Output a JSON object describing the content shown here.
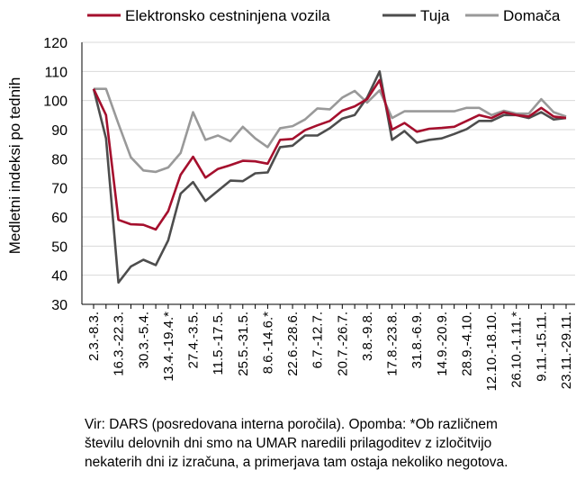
{
  "chart_data": {
    "type": "line",
    "ylabel": "Medletni indeksi po tednih",
    "xlabel": "",
    "ylim": [
      30,
      120
    ],
    "yticks": [
      30,
      40,
      50,
      60,
      70,
      80,
      90,
      100,
      110,
      120
    ],
    "grid": "horizontal",
    "legend_position": "top",
    "x": [
      "2.3.-8.3.",
      "9.3.-15.3.",
      "16.3.-22.3.",
      "23.3.-29.3.",
      "30.3.-5.4.",
      "6.4.-12.4.",
      "13.4.-19.4.*",
      "20.4.-26.4.",
      "27.4.-3.5.",
      "4.5.-10.5.",
      "11.5.-17.5.",
      "18.5.-24.5.",
      "25.5.-31.5.",
      "1.6.-7.6.",
      "8.6.-14.6.*",
      "15.6.-21.6.",
      "22.6.-28.6.",
      "29.6.-5.7.",
      "6.7.-12.7.",
      "13.7.-19.7.",
      "20.7.-26.7.",
      "27.7.-2.8.",
      "3.8.-9.8.",
      "10.8.-16.8.",
      "17.8.-23.8.",
      "24.8.-30.8.",
      "31.8.-6.9.",
      "7.9.-13.9.",
      "14.9.-20.9.",
      "21.9.-27.9.",
      "28.9.-4.10.",
      "5.10.-11.10.",
      "12.10.-18.10.",
      "19.10.-25.10.",
      "26.10.-1.11.*",
      "2.11.-8.11.",
      "9.11.-15.11.",
      "16.11.-22.11.",
      "23.11.-29.11."
    ],
    "tick_labels": [
      "2.3.-8.3.",
      "16.3.-22.3.",
      "30.3.-5.4.",
      "13.4.-19.4.*",
      "27.4.-3.5.",
      "11.5.-17.5.",
      "25.5.-31.5.",
      "8.6.-14.6.*",
      "22.6.-28.6.",
      "6.7.-12.7.",
      "20.7.-26.7.",
      "3.8.-9.8.",
      "17.8.-23.8.",
      "31.8.-6.9.",
      "14.9.-20.9.",
      "28.9.-4.10.",
      "12.10.-18.10.",
      "26.10.-1.11.*",
      "9.11.-15.11.",
      "23.11.-29.11."
    ],
    "series": [
      {
        "name": "Elektronsko cestninjena vozila",
        "color": "#a50f2d",
        "values": [
          104,
          95,
          59,
          57.5,
          57.3,
          55.7,
          62,
          74.5,
          80.7,
          73.5,
          76.5,
          77.8,
          79.3,
          79.1,
          78.3,
          86.5,
          86.8,
          89.8,
          91.5,
          93,
          96.5,
          98,
          100.5,
          107,
          90,
          92.3,
          89.3,
          90.3,
          90.6,
          91,
          93,
          95,
          94,
          96,
          95,
          94.5,
          97.5,
          94.5,
          94
        ]
      },
      {
        "name": "Tuja",
        "color": "#4d4d4d",
        "values": [
          104,
          87,
          37.5,
          43,
          45.3,
          43.5,
          52,
          68,
          72,
          65.5,
          69,
          72.5,
          72.3,
          75,
          75.3,
          84,
          84.5,
          88,
          88,
          90.5,
          93.8,
          95,
          101,
          110,
          86.5,
          89.5,
          85.5,
          86.5,
          87,
          88.5,
          90.2,
          93,
          93,
          95,
          95,
          94,
          96,
          93.5,
          94
        ]
      },
      {
        "name": "Domača",
        "color": "#999999",
        "values": [
          104,
          104,
          92,
          80.5,
          76,
          75.5,
          77,
          82,
          96,
          86.5,
          88,
          86,
          91,
          87,
          84,
          90.5,
          91.2,
          93.5,
          97.3,
          97,
          101,
          103.3,
          99.3,
          103.5,
          94,
          96.3,
          96.3,
          96.3,
          96.3,
          96.3,
          97.5,
          97.5,
          95,
          96.5,
          95.5,
          95.5,
          100.5,
          96,
          94.5
        ]
      }
    ]
  },
  "note": {
    "line1": "Vir: DARS (posredovana interna poročila). Opomba: *Ob različnem",
    "line2": "številu delovnih dni smo na UMAR naredili prilagoditev z izločitvijo",
    "line3": "nekaterih dni iz izračuna, a primerjava tam ostaja nekoliko negotova."
  }
}
